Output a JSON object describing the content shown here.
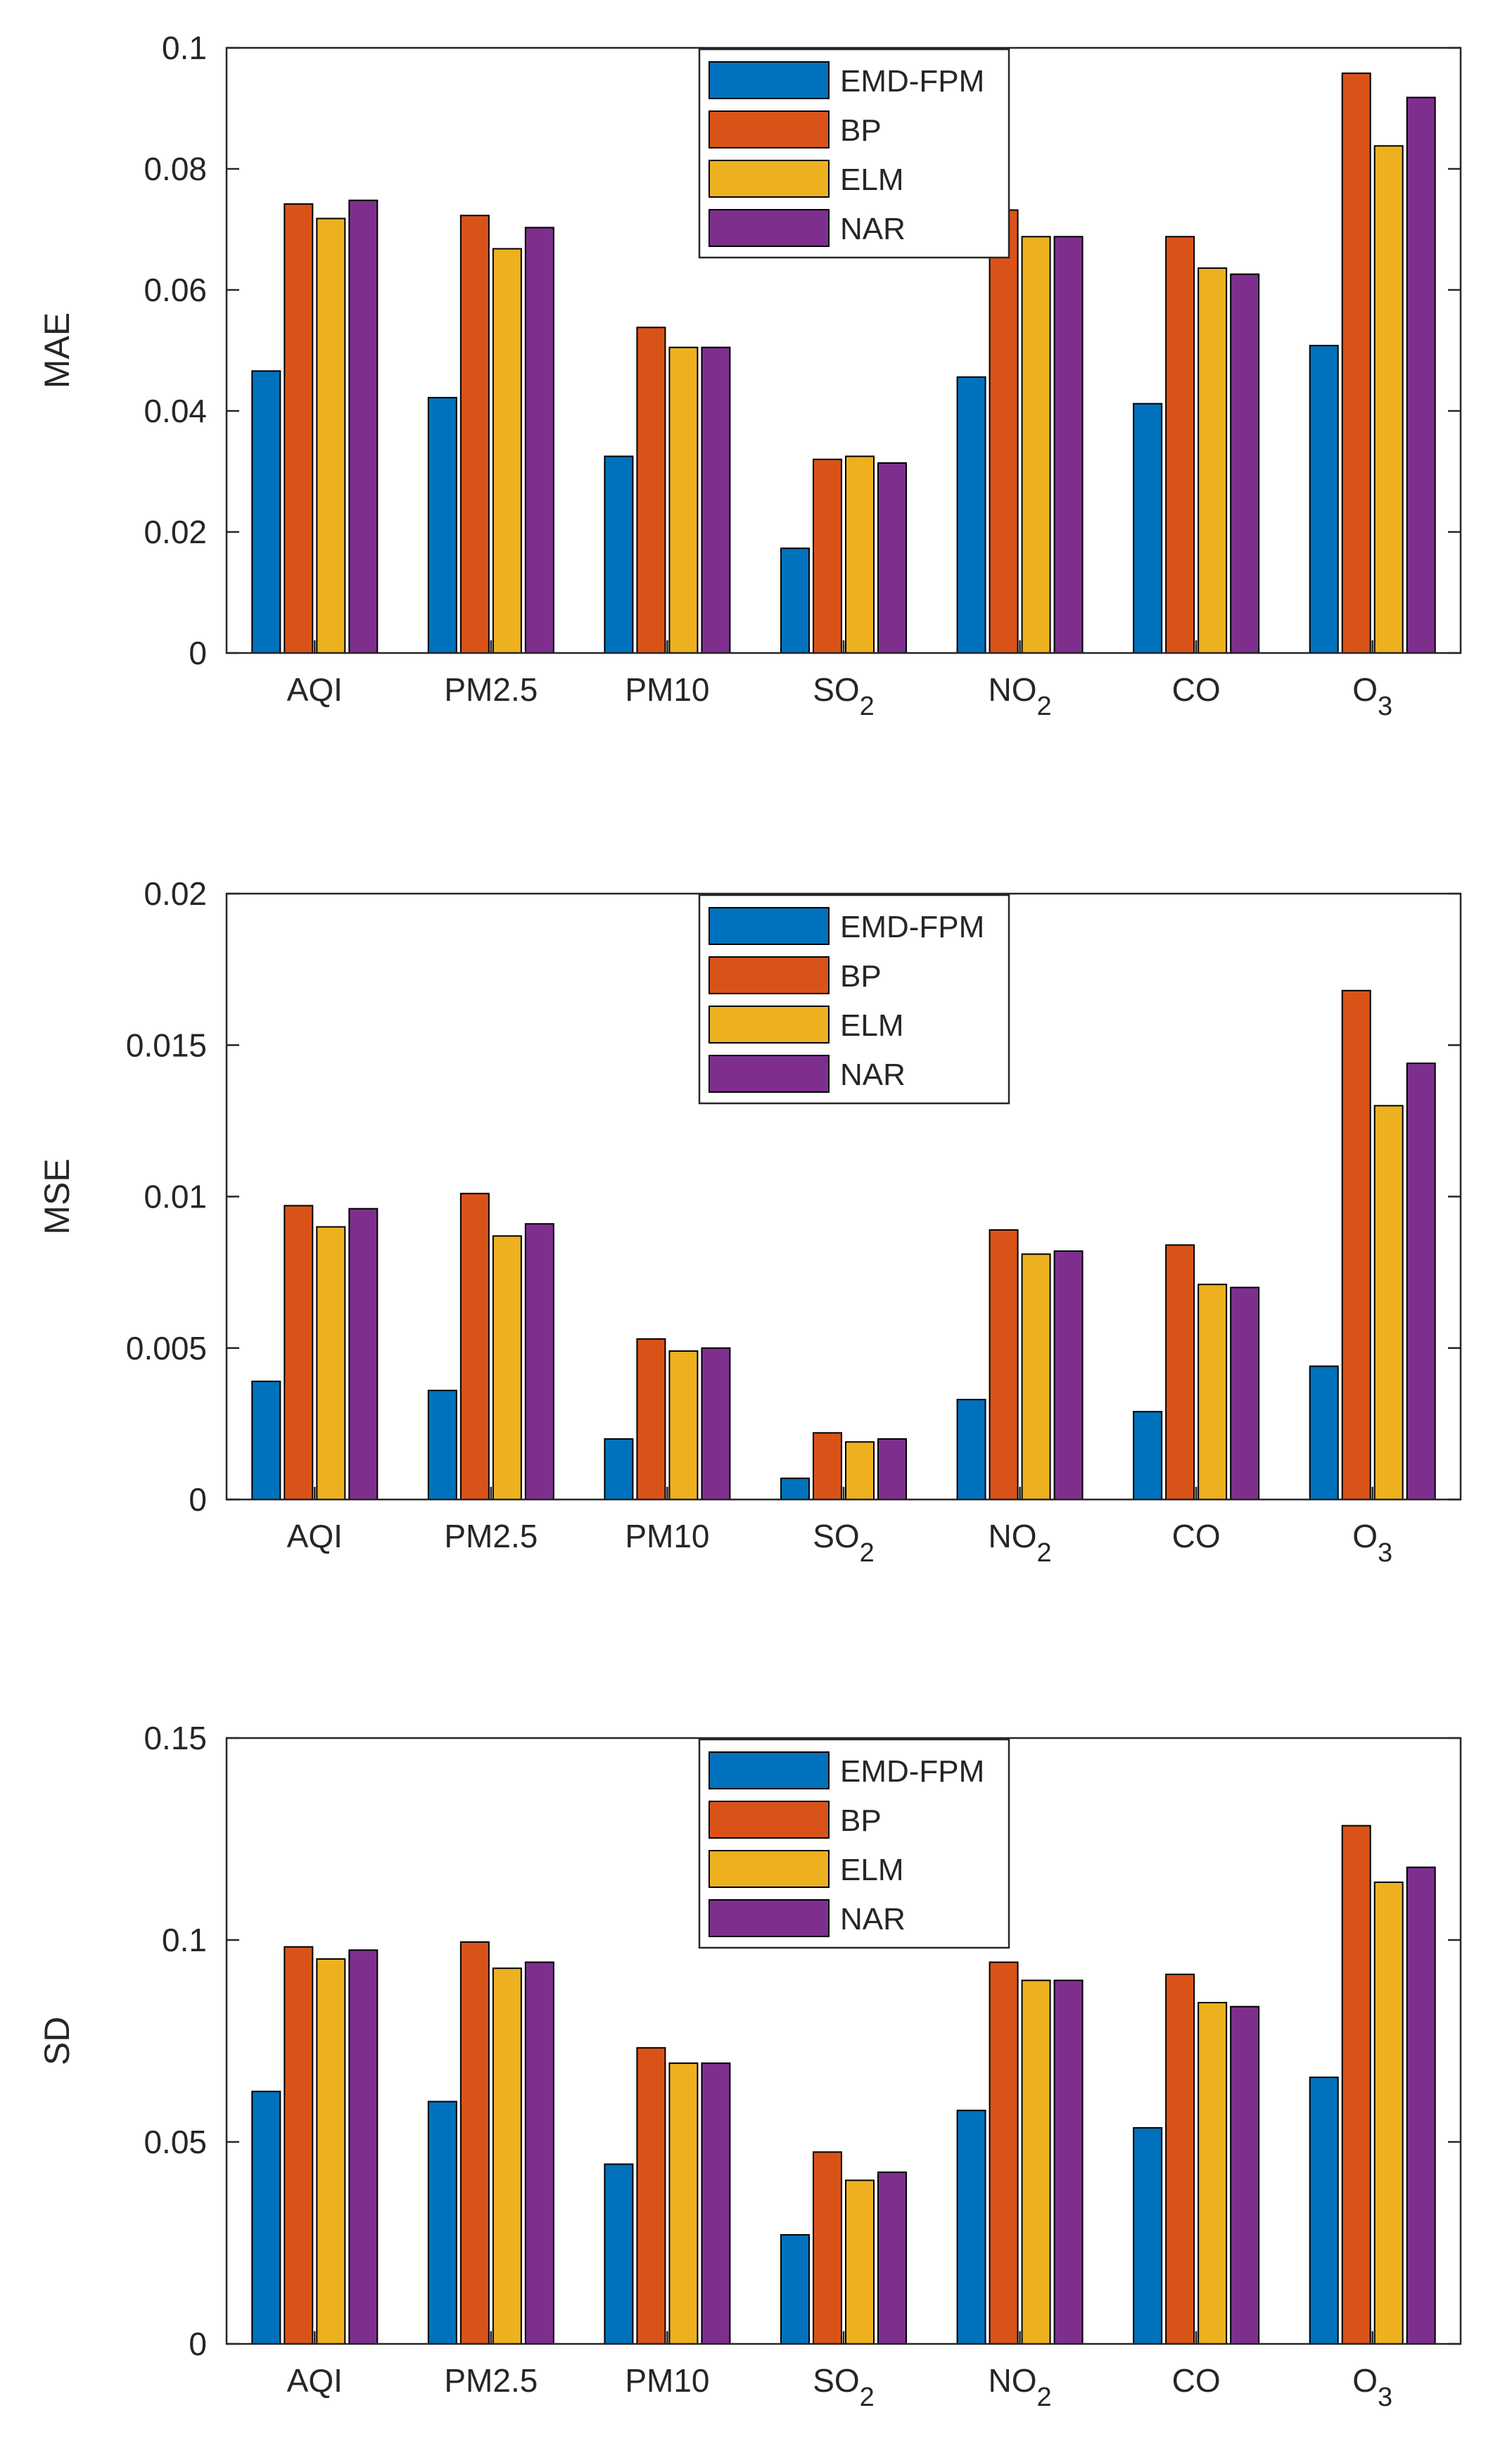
{
  "colors": {
    "EMD-FPM": "#0072BD",
    "BP": "#D95319",
    "ELM": "#EDB120",
    "NAR": "#7E2F8E",
    "axis": "#262626",
    "background": "#ffffff"
  },
  "chart_data": [
    {
      "type": "bar",
      "title": "",
      "ylabel": "MAE",
      "xlabel": "",
      "ylim": [
        0,
        0.1
      ],
      "yticks": [
        0,
        0.02,
        0.04,
        0.06,
        0.08,
        0.1
      ],
      "ytick_labels": [
        "0",
        "0.02",
        "0.04",
        "0.06",
        "0.08",
        "0.1"
      ],
      "categories": [
        "AQI",
        "PM2.5",
        "PM10",
        "SO2",
        "NO2",
        "CO",
        "O3"
      ],
      "category_labels": [
        {
          "base": "AQI",
          "sub": ""
        },
        {
          "base": "PM2.5",
          "sub": ""
        },
        {
          "base": "PM10",
          "sub": ""
        },
        {
          "base": "SO",
          "sub": "2"
        },
        {
          "base": "NO",
          "sub": "2"
        },
        {
          "base": "CO",
          "sub": ""
        },
        {
          "base": "O",
          "sub": "3"
        }
      ],
      "legend_position": "top-center",
      "series": [
        {
          "name": "EMD-FPM",
          "values": [
            0.0466,
            0.0422,
            0.0325,
            0.0173,
            0.0456,
            0.0412,
            0.0508
          ]
        },
        {
          "name": "BP",
          "values": [
            0.0742,
            0.0723,
            0.0538,
            0.032,
            0.0732,
            0.0688,
            0.0958
          ]
        },
        {
          "name": "ELM",
          "values": [
            0.0718,
            0.0668,
            0.0505,
            0.0325,
            0.0688,
            0.0636,
            0.0838
          ]
        },
        {
          "name": "NAR",
          "values": [
            0.0748,
            0.0703,
            0.0505,
            0.0314,
            0.0688,
            0.0626,
            0.0918
          ]
        }
      ]
    },
    {
      "type": "bar",
      "title": "",
      "ylabel": "MSE",
      "xlabel": "",
      "ylim": [
        0,
        0.02
      ],
      "yticks": [
        0,
        0.005,
        0.01,
        0.015,
        0.02
      ],
      "ytick_labels": [
        "0",
        "0.005",
        "0.01",
        "0.015",
        "0.02"
      ],
      "categories": [
        "AQI",
        "PM2.5",
        "PM10",
        "SO2",
        "NO2",
        "CO",
        "O3"
      ],
      "category_labels": [
        {
          "base": "AQI",
          "sub": ""
        },
        {
          "base": "PM2.5",
          "sub": ""
        },
        {
          "base": "PM10",
          "sub": ""
        },
        {
          "base": "SO",
          "sub": "2"
        },
        {
          "base": "NO",
          "sub": "2"
        },
        {
          "base": "CO",
          "sub": ""
        },
        {
          "base": "O",
          "sub": "3"
        }
      ],
      "legend_position": "top-center",
      "series": [
        {
          "name": "EMD-FPM",
          "values": [
            0.0039,
            0.0036,
            0.002,
            0.0007,
            0.0033,
            0.0029,
            0.0044
          ]
        },
        {
          "name": "BP",
          "values": [
            0.0097,
            0.0101,
            0.0053,
            0.0022,
            0.0089,
            0.0084,
            0.0168
          ]
        },
        {
          "name": "ELM",
          "values": [
            0.009,
            0.0087,
            0.0049,
            0.0019,
            0.0081,
            0.0071,
            0.013
          ]
        },
        {
          "name": "NAR",
          "values": [
            0.0096,
            0.0091,
            0.005,
            0.002,
            0.0082,
            0.007,
            0.0144
          ]
        }
      ]
    },
    {
      "type": "bar",
      "title": "",
      "ylabel": "SD",
      "xlabel": "",
      "ylim": [
        0,
        0.15
      ],
      "yticks": [
        0,
        0.05,
        0.1,
        0.15
      ],
      "ytick_labels": [
        "0",
        "0.05",
        "0.1",
        "0.15"
      ],
      "categories": [
        "AQI",
        "PM2.5",
        "PM10",
        "SO2",
        "NO2",
        "CO",
        "O3"
      ],
      "category_labels": [
        {
          "base": "AQI",
          "sub": ""
        },
        {
          "base": "PM2.5",
          "sub": ""
        },
        {
          "base": "PM10",
          "sub": ""
        },
        {
          "base": "SO",
          "sub": "2"
        },
        {
          "base": "NO",
          "sub": "2"
        },
        {
          "base": "CO",
          "sub": ""
        },
        {
          "base": "O",
          "sub": "3"
        }
      ],
      "legend_position": "top-center",
      "series": [
        {
          "name": "EMD-FPM",
          "values": [
            0.0625,
            0.06,
            0.0445,
            0.027,
            0.0578,
            0.0535,
            0.066
          ]
        },
        {
          "name": "BP",
          "values": [
            0.0983,
            0.0995,
            0.0733,
            0.0475,
            0.0945,
            0.0915,
            0.1283
          ]
        },
        {
          "name": "ELM",
          "values": [
            0.0953,
            0.093,
            0.0695,
            0.0405,
            0.09,
            0.0845,
            0.1143
          ]
        },
        {
          "name": "NAR",
          "values": [
            0.0975,
            0.0945,
            0.0695,
            0.0425,
            0.09,
            0.0835,
            0.118
          ]
        }
      ]
    }
  ]
}
